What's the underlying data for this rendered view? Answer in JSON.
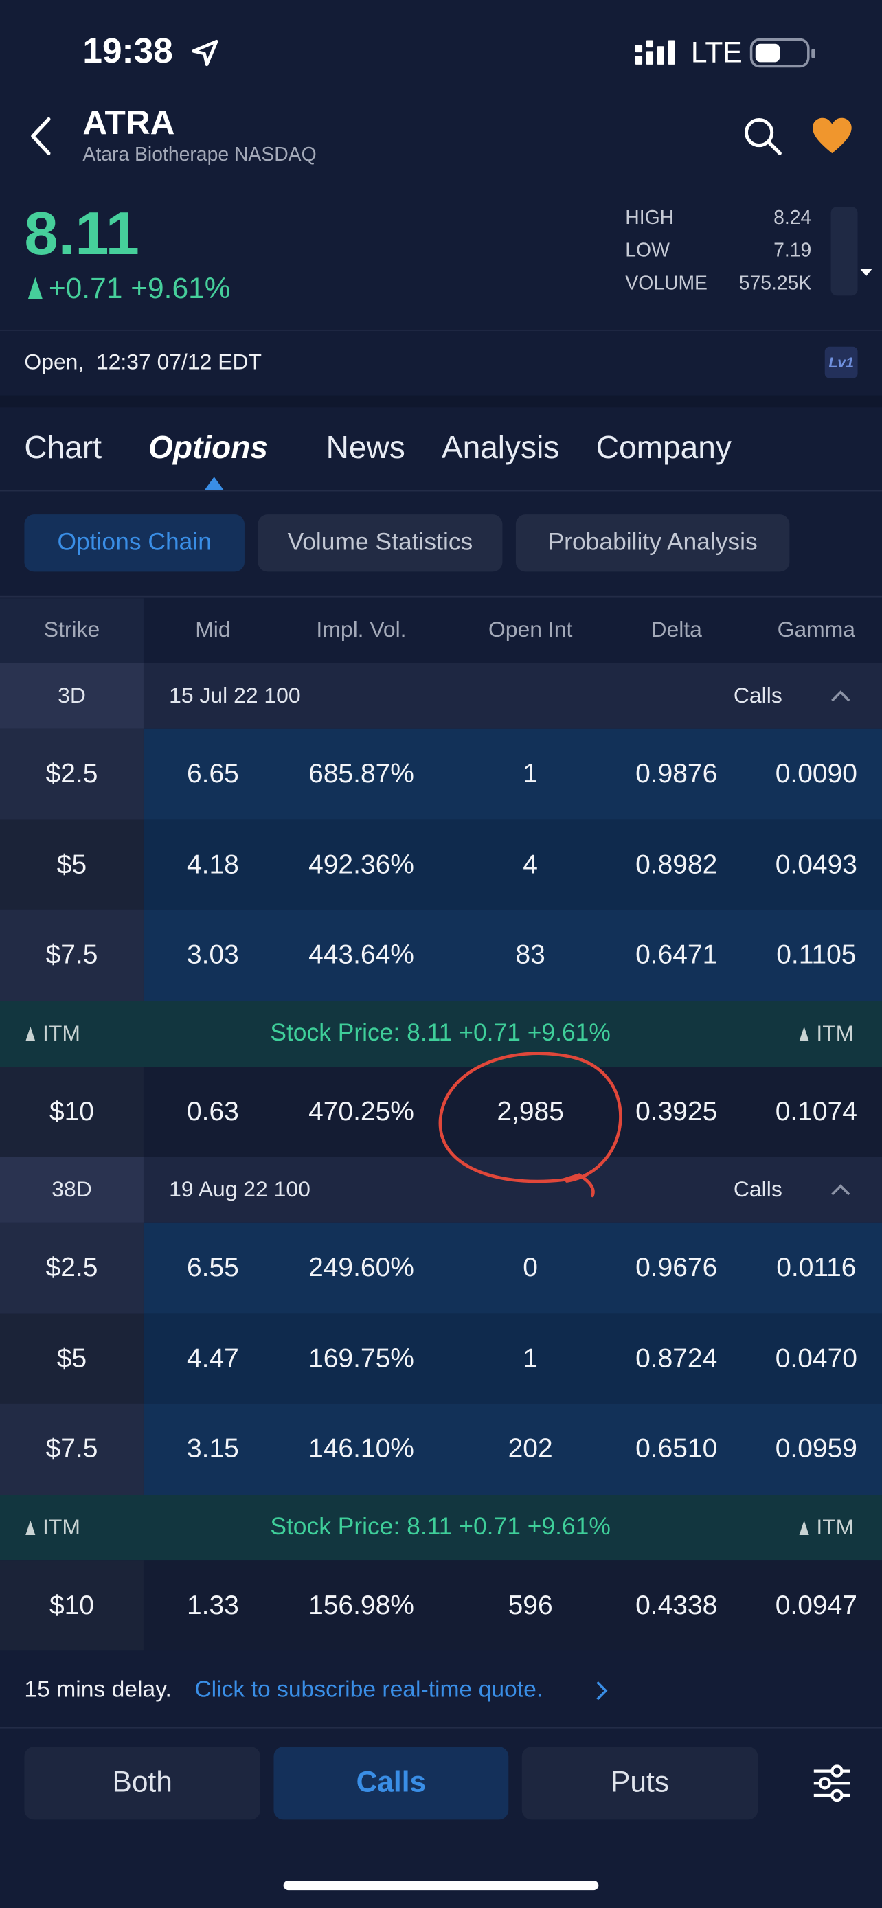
{
  "status_bar": {
    "time": "19:38",
    "network": "LTE"
  },
  "header": {
    "ticker": "ATRA",
    "subtitle": "Atara Biotherape NASDAQ"
  },
  "quote": {
    "price": "8.11",
    "change": "+0.71 +9.61%",
    "stats": [
      {
        "label": "HIGH",
        "value": "8.24"
      },
      {
        "label": "LOW",
        "value": "7.19"
      },
      {
        "label": "VOLUME",
        "value": "575.25K"
      }
    ]
  },
  "market_status": "Open,  12:37 07/12 EDT",
  "level_badge": "Lv1",
  "tabs": [
    "Chart",
    "Options",
    "News",
    "Analysis",
    "Company"
  ],
  "sub_tabs": [
    "Options Chain",
    "Volume Statistics",
    "Probability Analysis"
  ],
  "table": {
    "columns": [
      "Strike",
      "Mid",
      "Impl. Vol.",
      "Open Int",
      "Delta",
      "Gamma"
    ],
    "groups": [
      {
        "days": "3D",
        "expiry": "15 Jul 22 100",
        "side": "Calls",
        "rows": [
          [
            "$2.5",
            "6.65",
            "685.87%",
            "1",
            "0.9876",
            "0.0090"
          ],
          [
            "$5",
            "4.18",
            "492.36%",
            "4",
            "0.8982",
            "0.0493"
          ],
          [
            "$7.5",
            "3.03",
            "443.64%",
            "83",
            "0.6471",
            "0.1105"
          ]
        ],
        "stock_row": {
          "left": "ITM",
          "text": "Stock Price: 8.11 +0.71 +9.61%",
          "right": "ITM"
        },
        "rows_after": [
          [
            "$10",
            "0.63",
            "470.25%",
            "2,985",
            "0.3925",
            "0.1074"
          ]
        ]
      },
      {
        "days": "38D",
        "expiry": "19 Aug 22 100",
        "side": "Calls",
        "rows": [
          [
            "$2.5",
            "6.55",
            "249.60%",
            "0",
            "0.9676",
            "0.0116"
          ],
          [
            "$5",
            "4.47",
            "169.75%",
            "1",
            "0.8724",
            "0.0470"
          ],
          [
            "$7.5",
            "3.15",
            "146.10%",
            "202",
            "0.6510",
            "0.0959"
          ]
        ],
        "stock_row": {
          "left": "ITM",
          "text": "Stock Price: 8.11 +0.71 +9.61%",
          "right": "ITM"
        },
        "rows_after": [
          [
            "$10",
            "1.33",
            "156.98%",
            "596",
            "0.4338",
            "0.0947"
          ]
        ]
      }
    ]
  },
  "footer": {
    "delay": "15 mins delay.",
    "link": "Click to subscribe real-time quote."
  },
  "bottom_buttons": [
    "Both",
    "Calls",
    "Puts"
  ]
}
